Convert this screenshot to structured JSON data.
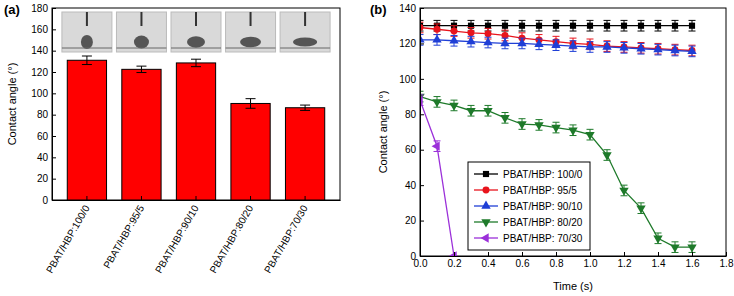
{
  "chart_data": [
    {
      "type": "bar",
      "title": "(a)",
      "y_label": "Contact angle (°)",
      "categories": [
        "PBAT/HBP:100/0",
        "PBAT/HBP:95/5",
        "PBAT/HBP:90/10",
        "PBAT/HBP:80/20",
        "PBAT/HBP:70/30"
      ],
      "values": [
        131,
        122.5,
        128.5,
        90.5,
        86.5
      ],
      "errors": [
        4,
        3,
        3.5,
        4.5,
        2.5
      ],
      "color": "#ff0000",
      "ylim": [
        0,
        180
      ],
      "yticks": [
        0,
        20,
        40,
        60,
        80,
        100,
        120,
        140,
        160,
        180
      ],
      "grid": false
    },
    {
      "type": "line",
      "title": "(b)",
      "x_label": "Time (s)",
      "y_label": "Contact angle (°)",
      "xlim": [
        0,
        1.8
      ],
      "xticks": [
        {
          "value": 0,
          "label": "0.0"
        },
        {
          "value": 0.2,
          "label": "0.2"
        },
        {
          "value": 0.4,
          "label": "0.4"
        },
        {
          "value": 0.6,
          "label": "0.6"
        },
        {
          "value": 0.8,
          "label": "0.8"
        },
        {
          "value": 1,
          "label": "1.0"
        },
        {
          "value": 1.2,
          "label": "1.2"
        },
        {
          "value": 1.4,
          "label": "1.4"
        },
        {
          "value": 1.6,
          "label": "1.6"
        },
        {
          "value": 1.8,
          "label": "1.8"
        }
      ],
      "ylim": [
        0,
        140
      ],
      "yticks": [
        0,
        20,
        40,
        60,
        80,
        100,
        120,
        140
      ],
      "grid": false,
      "legend": "lower left",
      "series": [
        {
          "name": "PBAT/HBP: 100/0",
          "color": "#000000",
          "marker": "square",
          "x": [
            0,
            0.1,
            0.2,
            0.3,
            0.4,
            0.5,
            0.6,
            0.7,
            0.8,
            0.9,
            1,
            1.1,
            1.2,
            1.3,
            1.4,
            1.5,
            1.6
          ],
          "values": [
            130,
            130,
            130,
            130,
            130,
            130,
            130,
            130,
            130,
            130,
            130,
            130,
            130,
            130,
            130,
            130,
            130
          ],
          "errors": [
            3,
            3,
            3,
            3,
            3,
            3,
            3,
            3,
            3,
            3,
            3,
            3,
            3,
            3,
            3,
            3,
            3
          ]
        },
        {
          "name": "PBAT/HBP: 95/5",
          "color": "#e8141c",
          "marker": "circle",
          "x": [
            0,
            0.1,
            0.2,
            0.3,
            0.4,
            0.5,
            0.6,
            0.7,
            0.8,
            0.9,
            1,
            1.1,
            1.2,
            1.3,
            1.4,
            1.5,
            1.6
          ],
          "values": [
            129,
            128,
            127,
            126,
            125.5,
            124.5,
            123,
            122,
            121,
            120,
            119.5,
            118.5,
            118,
            117.5,
            117,
            116.5,
            116
          ],
          "errors": [
            3,
            3,
            3,
            3,
            3,
            3,
            3,
            3,
            3,
            3,
            3,
            3,
            3,
            3,
            3,
            3,
            3
          ]
        },
        {
          "name": "PBAT/HBP: 90/10",
          "color": "#1f3fd6",
          "marker": "triangle-up",
          "x": [
            0,
            0.1,
            0.2,
            0.3,
            0.4,
            0.5,
            0.6,
            0.7,
            0.8,
            0.9,
            1,
            1.1,
            1.2,
            1.3,
            1.4,
            1.5,
            1.6
          ],
          "values": [
            122,
            122,
            121.5,
            121,
            120.5,
            120,
            120,
            119.5,
            119,
            118.5,
            118,
            118,
            117.5,
            117,
            116.5,
            116,
            115.5
          ],
          "errors": [
            3,
            3,
            3,
            3,
            3,
            3,
            3,
            3,
            3,
            3,
            3,
            3,
            3,
            3,
            3,
            3,
            3
          ]
        },
        {
          "name": "PBAT/HBP: 80/20",
          "color": "#1e7a2a",
          "marker": "triangle-down",
          "x": [
            0,
            0.1,
            0.2,
            0.3,
            0.4,
            0.5,
            0.6,
            0.7,
            0.8,
            0.9,
            1,
            1.1,
            1.2,
            1.3,
            1.4,
            1.5,
            1.6
          ],
          "values": [
            90,
            87,
            85,
            82,
            82,
            78,
            74.5,
            74,
            72.5,
            71,
            68.5,
            57,
            37,
            27,
            10,
            5,
            5
          ],
          "errors": [
            3,
            3,
            3,
            3,
            3,
            3,
            3,
            3,
            3,
            3,
            3,
            3,
            3,
            3,
            3,
            3,
            3
          ]
        },
        {
          "name": "PBAT/HBP: 70/30",
          "color": "#9b30d9",
          "marker": "triangle-left",
          "x": [
            0,
            0.1,
            0.2
          ],
          "values": [
            88,
            62,
            0
          ],
          "errors": [
            3,
            3,
            0
          ]
        }
      ]
    }
  ]
}
